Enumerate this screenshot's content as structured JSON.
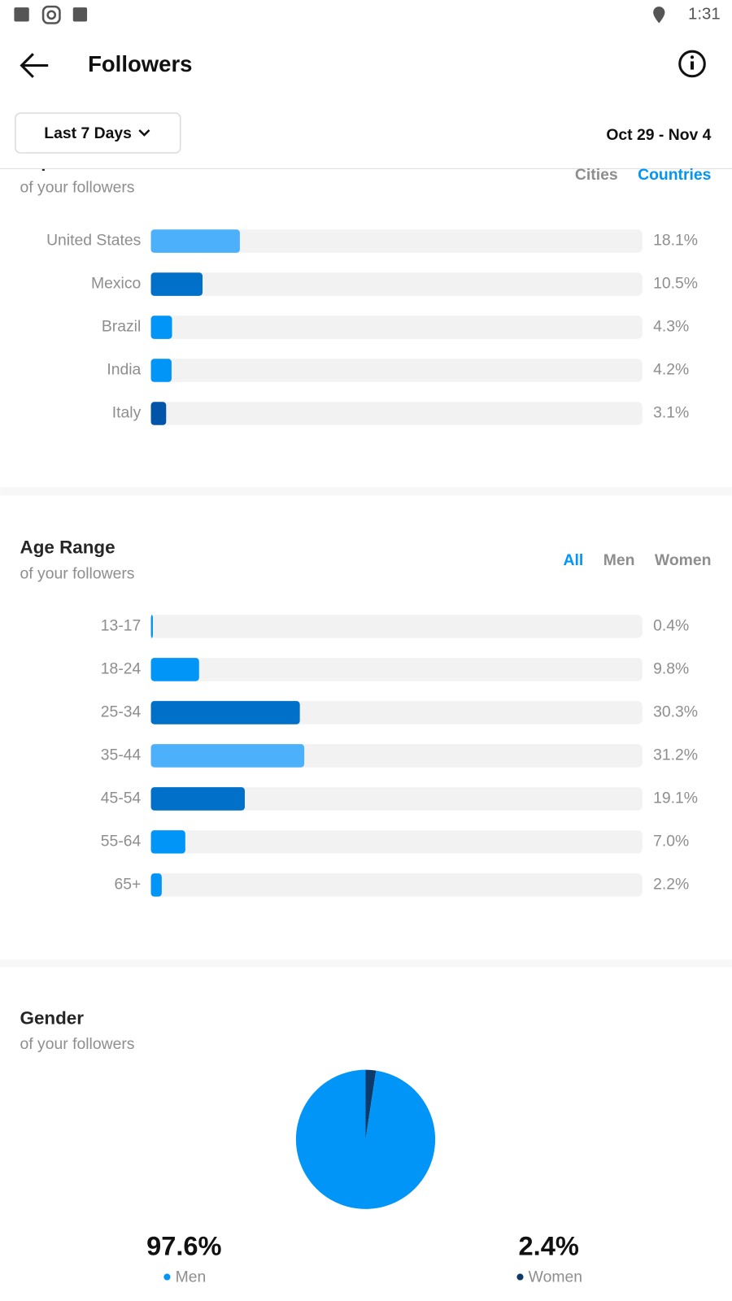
{
  "status_bar": {
    "time": "1:31"
  },
  "header": {
    "title": "Followers"
  },
  "filter": {
    "period": "Last 7 Days",
    "date_range": "Oct 29 - Nov 4"
  },
  "chart_data": [
    {
      "type": "bar",
      "orientation": "horizontal",
      "title": "Top Locations",
      "subtitle": "of your followers",
      "tabs": [
        "Cities",
        "Countries"
      ],
      "active_tab": 1,
      "categories": [
        "United States",
        "Mexico",
        "Brazil",
        "India",
        "Italy"
      ],
      "values": [
        18.1,
        10.5,
        4.3,
        4.2,
        3.1
      ],
      "value_labels": [
        "18.1%",
        "10.5%",
        "4.3%",
        "4.2%",
        "3.1%"
      ],
      "colors": [
        "#4db0fb",
        "#0070c9",
        "#0095f6",
        "#0095f6",
        "#0055a8"
      ],
      "xlim": [
        0,
        100
      ]
    },
    {
      "type": "bar",
      "orientation": "horizontal",
      "title": "Age Range",
      "subtitle": "of your followers",
      "tabs": [
        "All",
        "Men",
        "Women"
      ],
      "active_tab": 0,
      "categories": [
        "13-17",
        "18-24",
        "25-34",
        "35-44",
        "45-54",
        "55-64",
        "65+"
      ],
      "values": [
        0.4,
        9.8,
        30.3,
        31.2,
        19.1,
        7.0,
        2.2
      ],
      "value_labels": [
        "0.4%",
        "9.8%",
        "30.3%",
        "31.2%",
        "19.1%",
        "7.0%",
        "2.2%"
      ],
      "colors": [
        "#0095f6",
        "#0095f6",
        "#0070c9",
        "#4db0fb",
        "#0070c9",
        "#0095f6",
        "#0095f6"
      ],
      "xlim": [
        0,
        100
      ]
    },
    {
      "type": "pie",
      "title": "Gender",
      "subtitle": "of your followers",
      "categories": [
        "Men",
        "Women"
      ],
      "values": [
        97.6,
        2.4
      ],
      "value_labels": [
        "97.6%",
        "2.4%"
      ],
      "colors": [
        "#0095f6",
        "#0b3a6b"
      ]
    }
  ]
}
